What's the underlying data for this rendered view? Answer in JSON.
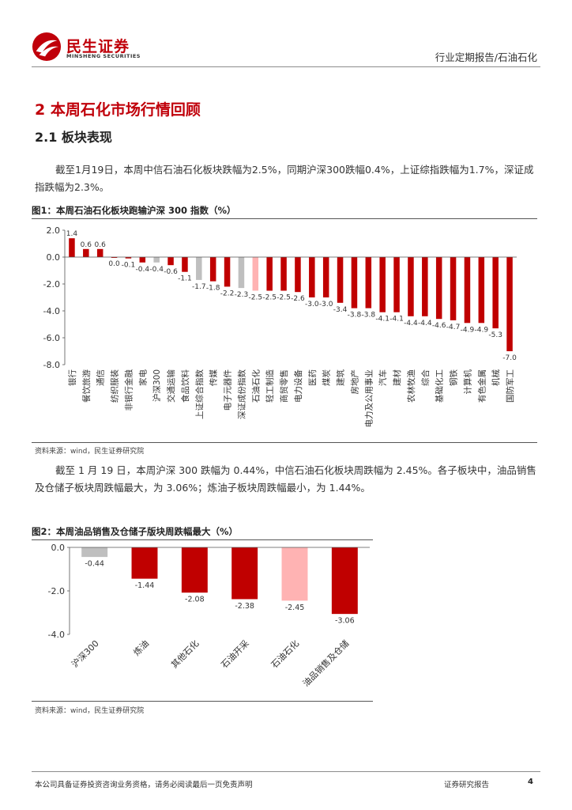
{
  "header": {
    "logo_cn": "民生证券",
    "logo_en": "MINSHENG SECURITIES",
    "report_type": "行业定期报告/石油石化"
  },
  "section": {
    "h1": "2 本周石化市场行情回顾",
    "h2": "2.1 板块表现"
  },
  "paragraphs": {
    "p1": "截至1月19日，本周中信石油石化板块跌幅为2.5%，同期沪深300跌幅0.4%，上证综指跌幅为1.7%，深证成指跌幅为2.3%。",
    "p2": "截至 1 月 19 日，本周沪深 300 跌幅为 0.44%，中信石油石化板块周跌幅为 2.45%。各子板块中，油品销售及仓储子板块周跌幅最大，为 3.06%；炼油子板块周跌幅最小，为 1.44%。"
  },
  "figures": {
    "fig1_title": "图1：本周石油石化板块跑输沪深 300 指数（%）",
    "fig1_source": "资料来源：wind，民生证券研究院",
    "fig2_title": "图2：本周油品销售及仓储子版块周跌幅最大（%）",
    "fig2_source": "资料来源：wind，民生证券研究院"
  },
  "colors": {
    "brand_red": "#c0000a",
    "bar_red": "#c00000",
    "bar_gray": "#bfbfbf",
    "bar_pink": "#ffb3b3"
  },
  "chart_data": [
    {
      "type": "bar",
      "title": "图1：本周石油石化板块跑输沪深 300 指数（%）",
      "ylim": [
        -8.0,
        2.0
      ],
      "yticks": [
        "2.0",
        "0.0",
        "-2.0",
        "-4.0",
        "-6.0",
        "-8.0"
      ],
      "ytick_values": [
        2,
        0,
        -2,
        -4,
        -6,
        -8
      ],
      "categories": [
        "银行",
        "餐饮旅游",
        "通信",
        "纺织服装",
        "非银行金融",
        "家电",
        "沪深300",
        "交通运输",
        "食品饮料",
        "上证综合指数",
        "传媒",
        "电子元器件",
        "深证成份指数",
        "石油石化",
        "轻工制造",
        "商贸零售",
        "电力设备",
        "医药",
        "煤炭",
        "建筑",
        "房地产",
        "电力及公用事业",
        "汽车",
        "建材",
        "农林牧渔",
        "综合",
        "基础化工",
        "钢铁",
        "计算机",
        "有色金属",
        "机械",
        "国防军工"
      ],
      "values": [
        1.4,
        0.6,
        0.6,
        0.0,
        -0.1,
        -0.4,
        -0.4,
        -0.6,
        -1.1,
        -1.7,
        -1.8,
        -2.2,
        -2.3,
        -2.5,
        -2.5,
        -2.5,
        -2.6,
        -3.0,
        -3.0,
        -3.4,
        -3.8,
        -3.8,
        -4.1,
        -4.1,
        -4.4,
        -4.4,
        -4.6,
        -4.7,
        -4.9,
        -4.9,
        -5.3,
        -7.0
      ],
      "labels": [
        "1.4",
        "0.6",
        "0.6",
        "0.0",
        "-0.1",
        "-0.4",
        "-0.4",
        "-0.6",
        "-1.1",
        "-1.7",
        "-1.8",
        "-2.2",
        "-2.3",
        "-2.5",
        "-2.5",
        "-2.5",
        "-2.6",
        "-3.0",
        "-3.0",
        "-3.4",
        "-3.8",
        "-3.8",
        "-4.1",
        "-4.1",
        "-4.4",
        "-4.4",
        "-4.6",
        "-4.7",
        "-4.9",
        "-4.9",
        "-5.3",
        "-7.0"
      ],
      "colors": [
        "red",
        "red",
        "red",
        "red",
        "red",
        "red",
        "gray",
        "red",
        "red",
        "gray",
        "red",
        "red",
        "gray",
        "pink",
        "red",
        "red",
        "red",
        "red",
        "red",
        "red",
        "red",
        "red",
        "red",
        "red",
        "red",
        "red",
        "red",
        "red",
        "red",
        "red",
        "red",
        "red"
      ]
    },
    {
      "type": "bar",
      "title": "图2：本周油品销售及仓储子版块周跌幅最大（%）",
      "ylim": [
        -4.0,
        0.0
      ],
      "yticks": [
        "0.0",
        "-2.0",
        "-4.0"
      ],
      "ytick_values": [
        0,
        -2,
        -4
      ],
      "categories": [
        "沪深300",
        "炼油",
        "其他石化",
        "石油开采",
        "石油石化",
        "油品销售及仓储"
      ],
      "values": [
        -0.44,
        -1.44,
        -2.08,
        -2.38,
        -2.45,
        -3.06
      ],
      "labels": [
        "-0.44",
        "-1.44",
        "-2.08",
        "-2.38",
        "-2.45",
        "-3.06"
      ],
      "colors": [
        "gray",
        "red",
        "red",
        "red",
        "pink",
        "red"
      ]
    }
  ],
  "footer": {
    "disclaimer": "本公司具备证券投资咨询业务资格，请务必阅读最后一页免责声明",
    "right": "证券研究报告",
    "page": "4"
  }
}
